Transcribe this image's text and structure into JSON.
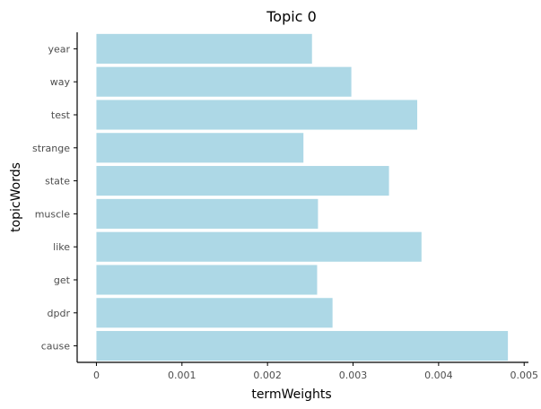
{
  "chart_data": {
    "type": "bar",
    "orientation": "horizontal",
    "title": "Topic 0",
    "xlabel": "termWeights",
    "ylabel": "topicWords",
    "categories": [
      "year",
      "way",
      "test",
      "strange",
      "state",
      "muscle",
      "like",
      "get",
      "dpdr",
      "cause"
    ],
    "values": [
      0.00252,
      0.00298,
      0.00375,
      0.00242,
      0.00342,
      0.00259,
      0.0038,
      0.00258,
      0.00276,
      0.00481
    ],
    "xlim": [
      -0.000225,
      0.00505
    ],
    "xticks": [
      0,
      0.001,
      0.002,
      0.003,
      0.004,
      0.005
    ],
    "xtick_labels": [
      "0",
      "0.001",
      "0.002",
      "0.003",
      "0.004",
      "0.005"
    ],
    "grid": false,
    "colors": {
      "bar": "#add8e6",
      "axis": "#000000",
      "tick_label": "#4d4d4d"
    }
  }
}
